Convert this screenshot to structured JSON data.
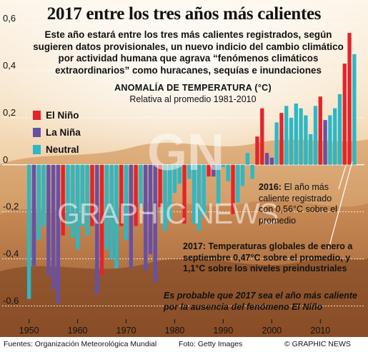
{
  "title": "2017 entre los tres años más calientes",
  "subtitle": "Este año estará entre los tres más calientes registrados, según sugieren datos provisionales, un nuevo indicio del cambio climático por actividad humana que agrava “fenómenos climáticos extraordinarios” como huracanes, sequías e inundaciones",
  "legend": [
    {
      "label": "El Niño",
      "color": "#e3242b"
    },
    {
      "label": "La Niña",
      "color": "#6650a8"
    },
    {
      "label": "Neutral",
      "color": "#2cb8c6"
    }
  ],
  "notes": {
    "note_2016_bold": "2016:",
    "note_2016_text": "El año más caliente registrado con 0,56°C sobre el promedio",
    "note_2017": "2017: Temperaturas globales de enero a septiembre 0,47°C sobre el promedio, y 1,1°C sobre los niveles preindustriales",
    "note_italic": "Es probable que 2017 sea el año más caliente por la ausencia del fenómeno El Niño"
  },
  "footer": {
    "sources": "Fuentes: Organización Meteorológica Mundial",
    "photo": "Foto: Getty Images",
    "credit": "© GRAPHIC NEWS"
  },
  "watermark": {
    "logo": "GN",
    "text": "GRAPHIC NEWS"
  },
  "chart_data": {
    "type": "bar",
    "title": "ANOMALÍA DE TEMPERATURA (°C)",
    "subtitle": "Relativa al promedio 1981-2010",
    "ylim": [
      -0.65,
      0.6
    ],
    "yticks": [
      "0,6",
      "0,4",
      "0,2",
      "0",
      "-0,2",
      "-0,4",
      "-0,6"
    ],
    "ytick_values": [
      0.6,
      0.4,
      0.2,
      0,
      -0.2,
      -0.4,
      -0.6
    ],
    "xticks": [
      "1950",
      "1960",
      "1970",
      "1980",
      "1990",
      "2000",
      "2010"
    ],
    "xtick_values": [
      1950,
      1960,
      1970,
      1980,
      1990,
      2000,
      2010
    ],
    "years": [
      1950,
      1951,
      1952,
      1953,
      1954,
      1955,
      1956,
      1957,
      1958,
      1959,
      1960,
      1961,
      1962,
      1963,
      1964,
      1965,
      1966,
      1967,
      1968,
      1969,
      1970,
      1971,
      1972,
      1973,
      1974,
      1975,
      1976,
      1977,
      1978,
      1979,
      1980,
      1981,
      1982,
      1983,
      1984,
      1985,
      1986,
      1987,
      1988,
      1989,
      1990,
      1991,
      1992,
      1993,
      1994,
      1995,
      1996,
      1997,
      1998,
      1999,
      2000,
      2001,
      2002,
      2003,
      2004,
      2005,
      2006,
      2007,
      2008,
      2009,
      2010,
      2011,
      2012,
      2013,
      2014,
      2015,
      2016,
      2017
    ],
    "values": [
      -0.57,
      -0.43,
      -0.32,
      -0.26,
      -0.47,
      -0.53,
      -0.59,
      -0.3,
      -0.26,
      -0.31,
      -0.36,
      -0.26,
      -0.3,
      -0.26,
      -0.55,
      -0.47,
      -0.36,
      -0.4,
      -0.44,
      -0.26,
      -0.32,
      -0.44,
      -0.26,
      -0.18,
      -0.45,
      -0.38,
      -0.5,
      -0.18,
      -0.28,
      -0.24,
      -0.12,
      -0.08,
      -0.25,
      -0.06,
      -0.25,
      -0.28,
      -0.22,
      -0.05,
      -0.05,
      -0.17,
      -0.01,
      -0.07,
      -0.21,
      -0.16,
      -0.09,
      0.05,
      -0.06,
      0.12,
      0.24,
      0.05,
      0.03,
      0.18,
      0.22,
      0.25,
      0.2,
      0.26,
      0.24,
      0.21,
      0.13,
      0.25,
      0.29,
      0.19,
      0.21,
      0.24,
      0.3,
      0.43,
      0.56,
      0.47
    ],
    "phase": [
      "N",
      "L",
      "N",
      "N",
      "L",
      "L",
      "L",
      "E",
      "N",
      "N",
      "N",
      "N",
      "N",
      "E",
      "L",
      "E",
      "N",
      "N",
      "N",
      "E",
      "N",
      "L",
      "E",
      "N",
      "L",
      "L",
      "L",
      "E",
      "N",
      "N",
      "N",
      "N",
      "E",
      "N",
      "N",
      "N",
      "N",
      "E",
      "L",
      "N",
      "N",
      "N",
      "E",
      "N",
      "N",
      "N",
      "N",
      "E",
      "E",
      "L",
      "L",
      "N",
      "E",
      "N",
      "N",
      "N",
      "N",
      "N",
      "N",
      "N",
      "E",
      "L",
      "N",
      "N",
      "N",
      "E",
      "E",
      "N"
    ],
    "phase_colors": {
      "E": "#e3242b",
      "L": "#6650a8",
      "N": "#2cb8c6"
    }
  }
}
